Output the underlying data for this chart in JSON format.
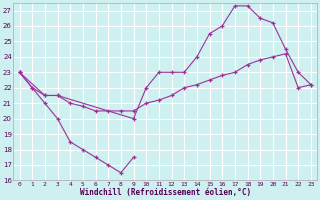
{
  "bg_color": "#cff0f0",
  "grid_color": "#ffffff",
  "line_color": "#993399",
  "xlabel": "Windchill (Refroidissement éolien,°C)",
  "xmin": -0.5,
  "xmax": 23.5,
  "ymin": 16,
  "ymax": 27.5,
  "line1_x": [
    0,
    1,
    2,
    3,
    4,
    5,
    6,
    7,
    8,
    9
  ],
  "line1_y": [
    23,
    22,
    21,
    20,
    18.5,
    18,
    17.5,
    17,
    16.5,
    17.5
  ],
  "line2_x": [
    0,
    2,
    3,
    9,
    10,
    11,
    12,
    13,
    14,
    15,
    16,
    17,
    18,
    19,
    20,
    21,
    22,
    23
  ],
  "line2_y": [
    23,
    21.5,
    21.5,
    20,
    22,
    23,
    23,
    23,
    24,
    25.5,
    26,
    27.3,
    27.3,
    26.5,
    26.2,
    24.5,
    23,
    22.2
  ],
  "line3_x": [
    0,
    1,
    2,
    3,
    4,
    5,
    6,
    7,
    8,
    9,
    10,
    11,
    12,
    13,
    14,
    15,
    16,
    17,
    18,
    19,
    20,
    21,
    22,
    23
  ],
  "line3_y": [
    23,
    22,
    21.5,
    21.5,
    21,
    20.8,
    20.5,
    20.5,
    20.5,
    20.5,
    21,
    21.2,
    21.5,
    22,
    22.2,
    22.5,
    22.8,
    23,
    23.5,
    23.8,
    24,
    24.2,
    22,
    22.2
  ],
  "yticks": [
    16,
    17,
    18,
    19,
    20,
    21,
    22,
    23,
    24,
    25,
    26,
    27
  ],
  "xticks": [
    0,
    1,
    2,
    3,
    4,
    5,
    6,
    7,
    8,
    9,
    10,
    11,
    12,
    13,
    14,
    15,
    16,
    17,
    18,
    19,
    20,
    21,
    22,
    23
  ]
}
